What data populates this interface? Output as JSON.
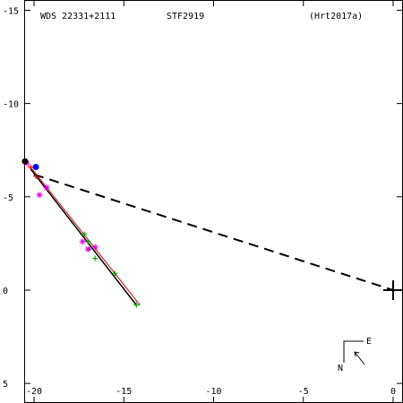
{
  "header": {
    "left": "WDS 22331+2111",
    "center": "STF2919",
    "right": "(Hrt2017a)"
  },
  "compass": {
    "east": "E",
    "north": "N"
  },
  "chart_data": {
    "type": "scatter",
    "xlim": [
      -20.5,
      0.5
    ],
    "ylim": [
      -15.5,
      6
    ],
    "x_ticks": [
      -20,
      -15,
      -10,
      -5,
      0
    ],
    "x_tick_labels": [
      "-20",
      "-15",
      "-10",
      "-5",
      "0"
    ],
    "y_ticks": [
      -15,
      -10,
      -5,
      0,
      5
    ],
    "y_tick_labels": [
      "-15",
      "-10",
      "-5",
      "0",
      "5"
    ],
    "primary": [
      0,
      0
    ],
    "colors": {
      "green": "#00aa00",
      "magenta": "#dd00dd",
      "red": "#ff0000",
      "blue": "#0000ff",
      "black": "#000000",
      "dark_red": "#cc0000"
    },
    "orbit_line_black": {
      "from": [
        -20.2,
        -6.5
      ],
      "to": [
        -14.3,
        0.8
      ]
    },
    "orbit_line_red": {
      "from": [
        -20.2,
        -6.6
      ],
      "to": [
        -14.1,
        0.8
      ]
    },
    "dashed_line": {
      "from": [
        -20.0,
        -6.2
      ],
      "to": [
        0,
        0
      ]
    },
    "series": [
      {
        "marker": "plus",
        "color": "green",
        "x": [
          -14.3,
          -15.5,
          -16.6,
          -16.9,
          -17.0,
          -17.2
        ],
        "y": [
          0.8,
          -0.9,
          -1.7,
          -2.2,
          -2.6,
          -3.0
        ]
      },
      {
        "marker": "star",
        "color": "magenta",
        "x": [
          -16.6,
          -17.0,
          -17.3,
          -19.7,
          -19.3,
          -20.4
        ],
        "y": [
          -2.3,
          -2.2,
          -2.6,
          -5.1,
          -5.5,
          -6.8
        ]
      },
      {
        "marker": "plus",
        "color": "red",
        "x": [
          -20.2,
          -19.9
        ],
        "y": [
          -6.6,
          -6.1
        ]
      },
      {
        "marker": "dot",
        "color": "blue",
        "x": [
          -19.9
        ],
        "y": [
          -6.6
        ]
      },
      {
        "marker": "dot",
        "color": "black",
        "x": [
          -20.5
        ],
        "y": [
          -6.9
        ]
      }
    ]
  }
}
